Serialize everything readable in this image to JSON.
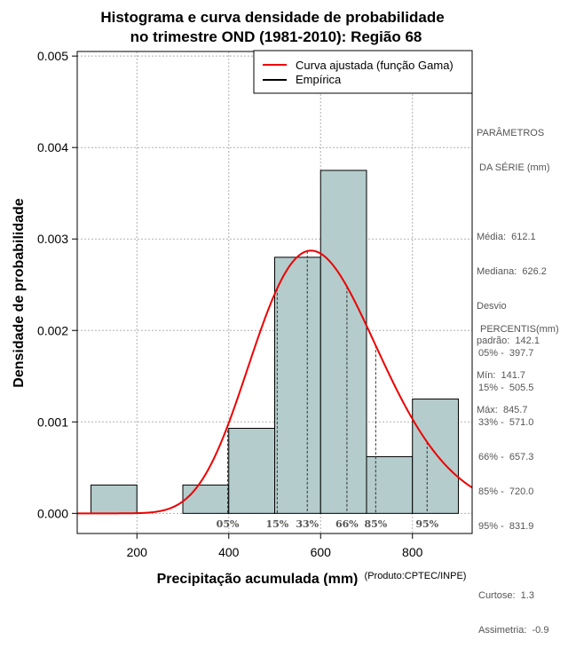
{
  "chart_data": {
    "type": "histogram",
    "title_line1": "Histograma e curva densidade de probabilidade",
    "title_line2": "no trimestre OND (1981-2010): Região 68",
    "xlabel": "Precipitação acumulada (mm)",
    "ylabel": "Densidade de probabilidade",
    "credit": "(Produto:CPTEC/INPE)",
    "xlim": [
      70,
      930
    ],
    "ylim": [
      -0.00022,
      0.00505
    ],
    "x_ticks": [
      200,
      400,
      600,
      800
    ],
    "x_tick_labels": [
      "200",
      "400",
      "600",
      "800"
    ],
    "y_ticks": [
      0,
      0.001,
      0.002,
      0.003,
      0.004,
      0.005
    ],
    "y_tick_labels": [
      "0.000",
      "0.001",
      "0.002",
      "0.003",
      "0.004",
      "0.005"
    ],
    "bins": [
      {
        "x0": 100,
        "x1": 200,
        "density": 0.00031
      },
      {
        "x0": 200,
        "x1": 300,
        "density": 0.0
      },
      {
        "x0": 300,
        "x1": 400,
        "density": 0.00031
      },
      {
        "x0": 400,
        "x1": 500,
        "density": 0.00093
      },
      {
        "x0": 500,
        "x1": 600,
        "density": 0.0028
      },
      {
        "x0": 600,
        "x1": 700,
        "density": 0.00375
      },
      {
        "x0": 700,
        "x1": 800,
        "density": 0.00062
      },
      {
        "x0": 800,
        "x1": 900,
        "density": 0.00125
      }
    ],
    "bar_color": "#b4cccc",
    "curve": {
      "name": "Curva ajustada (função Gama)",
      "color": "#ee0000",
      "mean": 612.1,
      "sd": 142.1
    },
    "percentile_lines": [
      {
        "label": "05%",
        "x": 397.7
      },
      {
        "label": "15%",
        "x": 505.5
      },
      {
        "label": "33%",
        "x": 571.0
      },
      {
        "label": "66%",
        "x": 657.3
      },
      {
        "label": "85%",
        "x": 720.0
      },
      {
        "label": "95%",
        "x": 831.9
      }
    ],
    "legend": [
      {
        "label": "Curva ajustada (função Gama)",
        "color": "#ee0000"
      },
      {
        "label": "Empírica",
        "color": "#000000"
      }
    ]
  },
  "params_panel": {
    "heading_line1": "PARÂMETROS",
    "heading_line2": " DA SÉRIE (mm)",
    "media": "Média:  612.1",
    "mediana": "Mediana:  626.2",
    "desvio_line1": "Desvio",
    "desvio_line2": "padrão:  142.1",
    "min": "Mín:  141.7",
    "max": "Máx:  845.7"
  },
  "percentis_panel": {
    "heading": "PERCENTIS(mm)",
    "p05": "05% -  397.7",
    "p15": "15% -  505.5",
    "p33": "33% -  571.0",
    "p66": "66% -  657.3",
    "p85": "85% -  720.0",
    "p95": "95% -  831.9",
    "curtose": "Curtose:  1.3",
    "assimetria": "Assimetria:  -0.9"
  }
}
